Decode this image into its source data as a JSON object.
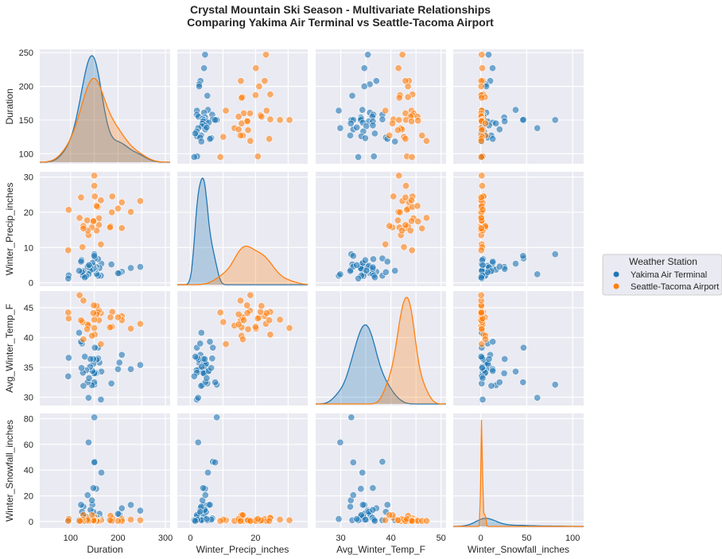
{
  "chart_data": {
    "type": "scatter",
    "subtype": "pairplot",
    "title": "Crystal Mountain Ski Season - Multivariate Relationships",
    "subtitle": "Comparing Yakima Air Terminal vs Seattle-Tacoma Airport",
    "variables": [
      "Duration",
      "Winter_Precip_inches",
      "Avg_Winter_Temp_F",
      "Winter_Snowfall_inches"
    ],
    "diagonal": "kde",
    "grid": true,
    "legend": {
      "title": "Weather Station",
      "placement": "right",
      "entries": [
        {
          "name": "Yakima Air Terminal",
          "color": "#1f77b4"
        },
        {
          "name": "Seattle-Tacoma Airport",
          "color": "#ff7f0e"
        }
      ]
    },
    "axes": {
      "Duration": {
        "range": [
          35,
          310
        ],
        "ticks": [
          100,
          150,
          200,
          250,
          300
        ],
        "ytick_labels": [
          "100",
          "150",
          "200",
          "250"
        ],
        "xtick_labels": [
          "100",
          "200",
          "300"
        ],
        "yrange": [
          85,
          255
        ]
      },
      "Winter_Precip_inches": {
        "range": [
          -4,
          36
        ],
        "ticks": [
          0,
          10,
          20,
          30
        ],
        "ytick_labels": [
          "0",
          "10",
          "20",
          "30"
        ],
        "xtick_labels": [
          "0",
          "20"
        ],
        "yrange": [
          -1,
          31.5
        ]
      },
      "Avg_Winter_Temp_F": {
        "range": [
          25,
          51
        ],
        "ticks": [
          30,
          35,
          40,
          45,
          50
        ],
        "ytick_labels": [
          "30",
          "35",
          "40",
          "45"
        ],
        "xtick_labels": [
          "30",
          "40",
          "50"
        ],
        "yrange": [
          28.6,
          47.8
        ]
      },
      "Winter_Snowfall_inches": {
        "range": [
          -30,
          112
        ],
        "ticks": [
          0,
          20,
          40,
          60,
          80,
          50,
          100
        ],
        "ytick_labels": [
          "0",
          "20",
          "40",
          "60",
          "80"
        ],
        "xtick_labels": [
          "0",
          "50",
          "100"
        ],
        "yrange": [
          -5,
          84
        ]
      }
    },
    "series": [
      {
        "name": "Yakima Air Terminal",
        "color": "#1f77b4",
        "points": [
          {
            "Duration": 247,
            "Winter_Precip_inches": 4.5,
            "Avg_Winter_Temp_F": 35.4,
            "Winter_Snowfall_inches": 8.5
          },
          {
            "Duration": 227,
            "Winter_Precip_inches": 4.2,
            "Avg_Winter_Temp_F": 34.7,
            "Winter_Snowfall_inches": 12.9
          },
          {
            "Duration": 208,
            "Winter_Precip_inches": 3.1,
            "Avg_Winter_Temp_F": 37.1,
            "Winter_Snowfall_inches": 10.3
          },
          {
            "Duration": 203,
            "Winter_Precip_inches": 2.7,
            "Avg_Winter_Temp_F": 35.8,
            "Winter_Snowfall_inches": 5.5
          },
          {
            "Duration": 200,
            "Winter_Precip_inches": 2.7,
            "Avg_Winter_Temp_F": 34.7,
            "Winter_Snowfall_inches": 6.0
          },
          {
            "Duration": 186,
            "Winter_Precip_inches": 5.2,
            "Avg_Winter_Temp_F": 32.3,
            "Winter_Snowfall_inches": 1.0
          },
          {
            "Duration": 165,
            "Winter_Precip_inches": 5.4,
            "Avg_Winter_Temp_F": 34.3,
            "Winter_Snowfall_inches": 38.0
          },
          {
            "Duration": 164,
            "Winter_Precip_inches": 2.0,
            "Avg_Winter_Temp_F": 29.6,
            "Winter_Snowfall_inches": 2.0
          },
          {
            "Duration": 161,
            "Winter_Precip_inches": 4.2,
            "Avg_Winter_Temp_F": 35.8,
            "Winter_Snowfall_inches": 6.0
          },
          {
            "Duration": 158,
            "Winter_Precip_inches": 2.0,
            "Avg_Winter_Temp_F": 38.3,
            "Winter_Snowfall_inches": 1.0
          },
          {
            "Duration": 158,
            "Winter_Precip_inches": 6.7,
            "Avg_Winter_Temp_F": 36.5,
            "Winter_Snowfall_inches": 2.5
          },
          {
            "Duration": 155,
            "Winter_Precip_inches": 2.5,
            "Avg_Winter_Temp_F": 36.3,
            "Winter_Snowfall_inches": 3.0
          },
          {
            "Duration": 154,
            "Winter_Precip_inches": 4.5,
            "Avg_Winter_Temp_F": 34.0,
            "Winter_Snowfall_inches": 25.5
          },
          {
            "Duration": 152,
            "Winter_Precip_inches": 3.8,
            "Avg_Winter_Temp_F": 34.1,
            "Winter_Snowfall_inches": 2.0
          },
          {
            "Duration": 151,
            "Winter_Precip_inches": 6.9,
            "Avg_Winter_Temp_F": 38.3,
            "Winter_Snowfall_inches": 46.5
          },
          {
            "Duration": 150,
            "Winter_Precip_inches": 8.1,
            "Avg_Winter_Temp_F": 32.1,
            "Winter_Snowfall_inches": 81.0
          },
          {
            "Duration": 150,
            "Winter_Precip_inches": 7.6,
            "Avg_Winter_Temp_F": 32.5,
            "Winter_Snowfall_inches": 46.0
          },
          {
            "Duration": 150,
            "Winter_Precip_inches": 4.1,
            "Avg_Winter_Temp_F": 34.0,
            "Winter_Snowfall_inches": 4.0
          },
          {
            "Duration": 148,
            "Winter_Precip_inches": 4.8,
            "Avg_Winter_Temp_F": 35.6,
            "Winter_Snowfall_inches": 7.5
          },
          {
            "Duration": 148,
            "Winter_Precip_inches": 3.9,
            "Avg_Winter_Temp_F": 36.4,
            "Winter_Snowfall_inches": 26.0
          },
          {
            "Duration": 146,
            "Winter_Precip_inches": 5.6,
            "Avg_Winter_Temp_F": 34.4,
            "Winter_Snowfall_inches": 13.0
          },
          {
            "Duration": 145,
            "Winter_Precip_inches": 3.7,
            "Avg_Winter_Temp_F": 32.0,
            "Winter_Snowfall_inches": 16.5
          },
          {
            "Duration": 142,
            "Winter_Precip_inches": 4.4,
            "Avg_Winter_Temp_F": 36.4,
            "Winter_Snowfall_inches": 9.0
          },
          {
            "Duration": 141,
            "Winter_Precip_inches": 3.5,
            "Avg_Winter_Temp_F": 35.1,
            "Winter_Snowfall_inches": 1.5
          },
          {
            "Duration": 138,
            "Winter_Precip_inches": 2.4,
            "Avg_Winter_Temp_F": 29.9,
            "Winter_Snowfall_inches": 61.5
          },
          {
            "Duration": 136,
            "Winter_Precip_inches": 4.6,
            "Avg_Winter_Temp_F": 32.5,
            "Winter_Snowfall_inches": 20.5
          },
          {
            "Duration": 133,
            "Winter_Precip_inches": 1.9,
            "Avg_Winter_Temp_F": 34.5,
            "Winter_Snowfall_inches": 3.5
          },
          {
            "Duration": 127,
            "Winter_Precip_inches": 3.3,
            "Avg_Winter_Temp_F": 31.9,
            "Winter_Snowfall_inches": 11.5
          },
          {
            "Duration": 126,
            "Winter_Precip_inches": 2.0,
            "Avg_Winter_Temp_F": 34.1,
            "Winter_Snowfall_inches": 5.0
          },
          {
            "Duration": 124,
            "Winter_Precip_inches": 3.0,
            "Avg_Winter_Temp_F": 39.0,
            "Winter_Snowfall_inches": 7.5
          },
          {
            "Duration": 123,
            "Winter_Precip_inches": 6.4,
            "Avg_Winter_Temp_F": 34.9,
            "Winter_Snowfall_inches": 1.5
          },
          {
            "Duration": 122,
            "Winter_Precip_inches": 6.0,
            "Avg_Winter_Temp_F": 39.3,
            "Winter_Snowfall_inches": 13.0
          },
          {
            "Duration": 118,
            "Winter_Precip_inches": 3.4,
            "Avg_Winter_Temp_F": 40.8,
            "Winter_Snowfall_inches": 1.0
          },
          {
            "Duration": 96,
            "Winter_Precip_inches": 2.1,
            "Avg_Winter_Temp_F": 36.6,
            "Winter_Snowfall_inches": 1.5
          },
          {
            "Duration": 95,
            "Winter_Precip_inches": 1.2,
            "Avg_Winter_Temp_F": 33.5,
            "Winter_Snowfall_inches": 1.0
          },
          {
            "Duration": 130,
            "Winter_Precip_inches": 1.5,
            "Avg_Winter_Temp_F": 36.8,
            "Winter_Snowfall_inches": 0.5
          },
          {
            "Duration": 139,
            "Winter_Precip_inches": 5.0,
            "Avg_Winter_Temp_F": 33.2,
            "Winter_Snowfall_inches": 2.0
          }
        ]
      },
      {
        "name": "Seattle-Tacoma Airport",
        "color": "#ff7f0e",
        "points": [
          {
            "Duration": 247,
            "Winter_Precip_inches": 23.2,
            "Avg_Winter_Temp_F": 42.3,
            "Winter_Snowfall_inches": 1.0
          },
          {
            "Duration": 227,
            "Winter_Precip_inches": 20.1,
            "Avg_Winter_Temp_F": 41.5,
            "Winter_Snowfall_inches": 1.5
          },
          {
            "Duration": 208,
            "Winter_Precip_inches": 22.8,
            "Avg_Winter_Temp_F": 43.6,
            "Winter_Snowfall_inches": 2.0
          },
          {
            "Duration": 208,
            "Winter_Precip_inches": 15.5,
            "Avg_Winter_Temp_F": 42.9,
            "Winter_Snowfall_inches": 0.5
          },
          {
            "Duration": 200,
            "Winter_Precip_inches": 21.1,
            "Avg_Winter_Temp_F": 43.4,
            "Winter_Snowfall_inches": 0.5
          },
          {
            "Duration": 188,
            "Winter_Precip_inches": 24.5,
            "Avg_Winter_Temp_F": 44.3,
            "Winter_Snowfall_inches": 2.5
          },
          {
            "Duration": 187,
            "Winter_Precip_inches": 20.0,
            "Avg_Winter_Temp_F": 41.8,
            "Winter_Snowfall_inches": 0.5
          },
          {
            "Duration": 184,
            "Winter_Precip_inches": 16.0,
            "Avg_Winter_Temp_F": 43.4,
            "Winter_Snowfall_inches": 4.5
          },
          {
            "Duration": 183,
            "Winter_Precip_inches": 15.7,
            "Avg_Winter_Temp_F": 41.7,
            "Winter_Snowfall_inches": 1.0
          },
          {
            "Duration": 164,
            "Winter_Precip_inches": 23.4,
            "Avg_Winter_Temp_F": 44.1,
            "Winter_Snowfall_inches": 0.5
          },
          {
            "Duration": 164,
            "Winter_Precip_inches": 10.9,
            "Avg_Winter_Temp_F": 38.9,
            "Winter_Snowfall_inches": 1.0
          },
          {
            "Duration": 160,
            "Winter_Precip_inches": 16.4,
            "Avg_Winter_Temp_F": 42.9,
            "Winter_Snowfall_inches": 0.5
          },
          {
            "Duration": 160,
            "Winter_Precip_inches": 18.3,
            "Avg_Winter_Temp_F": 44.5,
            "Winter_Snowfall_inches": 0.5
          },
          {
            "Duration": 157,
            "Winter_Precip_inches": 21.5,
            "Avg_Winter_Temp_F": 44.3,
            "Winter_Snowfall_inches": 0.5
          },
          {
            "Duration": 155,
            "Winter_Precip_inches": 21.8,
            "Avg_Winter_Temp_F": 45.3,
            "Winter_Snowfall_inches": 1.0
          },
          {
            "Duration": 155,
            "Winter_Precip_inches": 14.8,
            "Avg_Winter_Temp_F": 43.9,
            "Winter_Snowfall_inches": 0.5
          },
          {
            "Duration": 151,
            "Winter_Precip_inches": 24.5,
            "Avg_Winter_Temp_F": 40.5,
            "Winter_Snowfall_inches": 3.0
          },
          {
            "Duration": 150,
            "Winter_Precip_inches": 27.5,
            "Avg_Winter_Temp_F": 43.0,
            "Winter_Snowfall_inches": 1.5
          },
          {
            "Duration": 150,
            "Winter_Precip_inches": 30.4,
            "Avg_Winter_Temp_F": 41.6,
            "Winter_Snowfall_inches": 1.0
          },
          {
            "Duration": 149,
            "Winter_Precip_inches": 17.4,
            "Avg_Winter_Temp_F": 45.4,
            "Winter_Snowfall_inches": 0.5
          },
          {
            "Duration": 148,
            "Winter_Precip_inches": 17.5,
            "Avg_Winter_Temp_F": 44.1,
            "Winter_Snowfall_inches": 1.0
          },
          {
            "Duration": 145,
            "Winter_Precip_inches": 15.7,
            "Avg_Winter_Temp_F": 40.3,
            "Winter_Snowfall_inches": 5.0
          },
          {
            "Duration": 138,
            "Winter_Precip_inches": 13.5,
            "Avg_Winter_Temp_F": 42.0,
            "Winter_Snowfall_inches": 0.5
          },
          {
            "Duration": 136,
            "Winter_Precip_inches": 14.8,
            "Avg_Winter_Temp_F": 42.2,
            "Winter_Snowfall_inches": 2.0
          },
          {
            "Duration": 135,
            "Winter_Precip_inches": 17.7,
            "Avg_Winter_Temp_F": 41.4,
            "Winter_Snowfall_inches": 1.0
          },
          {
            "Duration": 127,
            "Winter_Precip_inches": 16.1,
            "Avg_Winter_Temp_F": 39.7,
            "Winter_Snowfall_inches": 5.0
          },
          {
            "Duration": 127,
            "Winter_Precip_inches": 15.4,
            "Avg_Winter_Temp_F": 46.2,
            "Winter_Snowfall_inches": 0.5
          },
          {
            "Duration": 125,
            "Winter_Precip_inches": 10.1,
            "Avg_Winter_Temp_F": 42.6,
            "Winter_Snowfall_inches": 1.5
          },
          {
            "Duration": 122,
            "Winter_Precip_inches": 24.2,
            "Avg_Winter_Temp_F": 42.9,
            "Winter_Snowfall_inches": 0.5
          },
          {
            "Duration": 119,
            "Winter_Precip_inches": 18.4,
            "Avg_Winter_Temp_F": 47.1,
            "Winter_Snowfall_inches": 0.5
          },
          {
            "Duration": 96,
            "Winter_Precip_inches": 20.7,
            "Avg_Winter_Temp_F": 43.2,
            "Winter_Snowfall_inches": 2.0
          },
          {
            "Duration": 95,
            "Winter_Precip_inches": 9.2,
            "Avg_Winter_Temp_F": 44.2,
            "Winter_Snowfall_inches": 0.5
          }
        ]
      }
    ],
    "kde_peaks": {
      "Duration": {
        "Yakima Air Terminal_mode": 145,
        "Seattle-Tacoma Airport_mode": 148
      },
      "Winter_Precip_inches": {
        "Yakima Air Terminal_mode": 3.5,
        "Seattle-Tacoma Airport_mode": 17
      },
      "Avg_Winter_Temp_F": {
        "Yakima Air Terminal_mode": 35,
        "Seattle-Tacoma Airport_mode": 43.3
      },
      "Winter_Snowfall_inches": {
        "Yakima Air Terminal_mode": 5,
        "Seattle-Tacoma Airport_mode": 0.8
      }
    }
  }
}
